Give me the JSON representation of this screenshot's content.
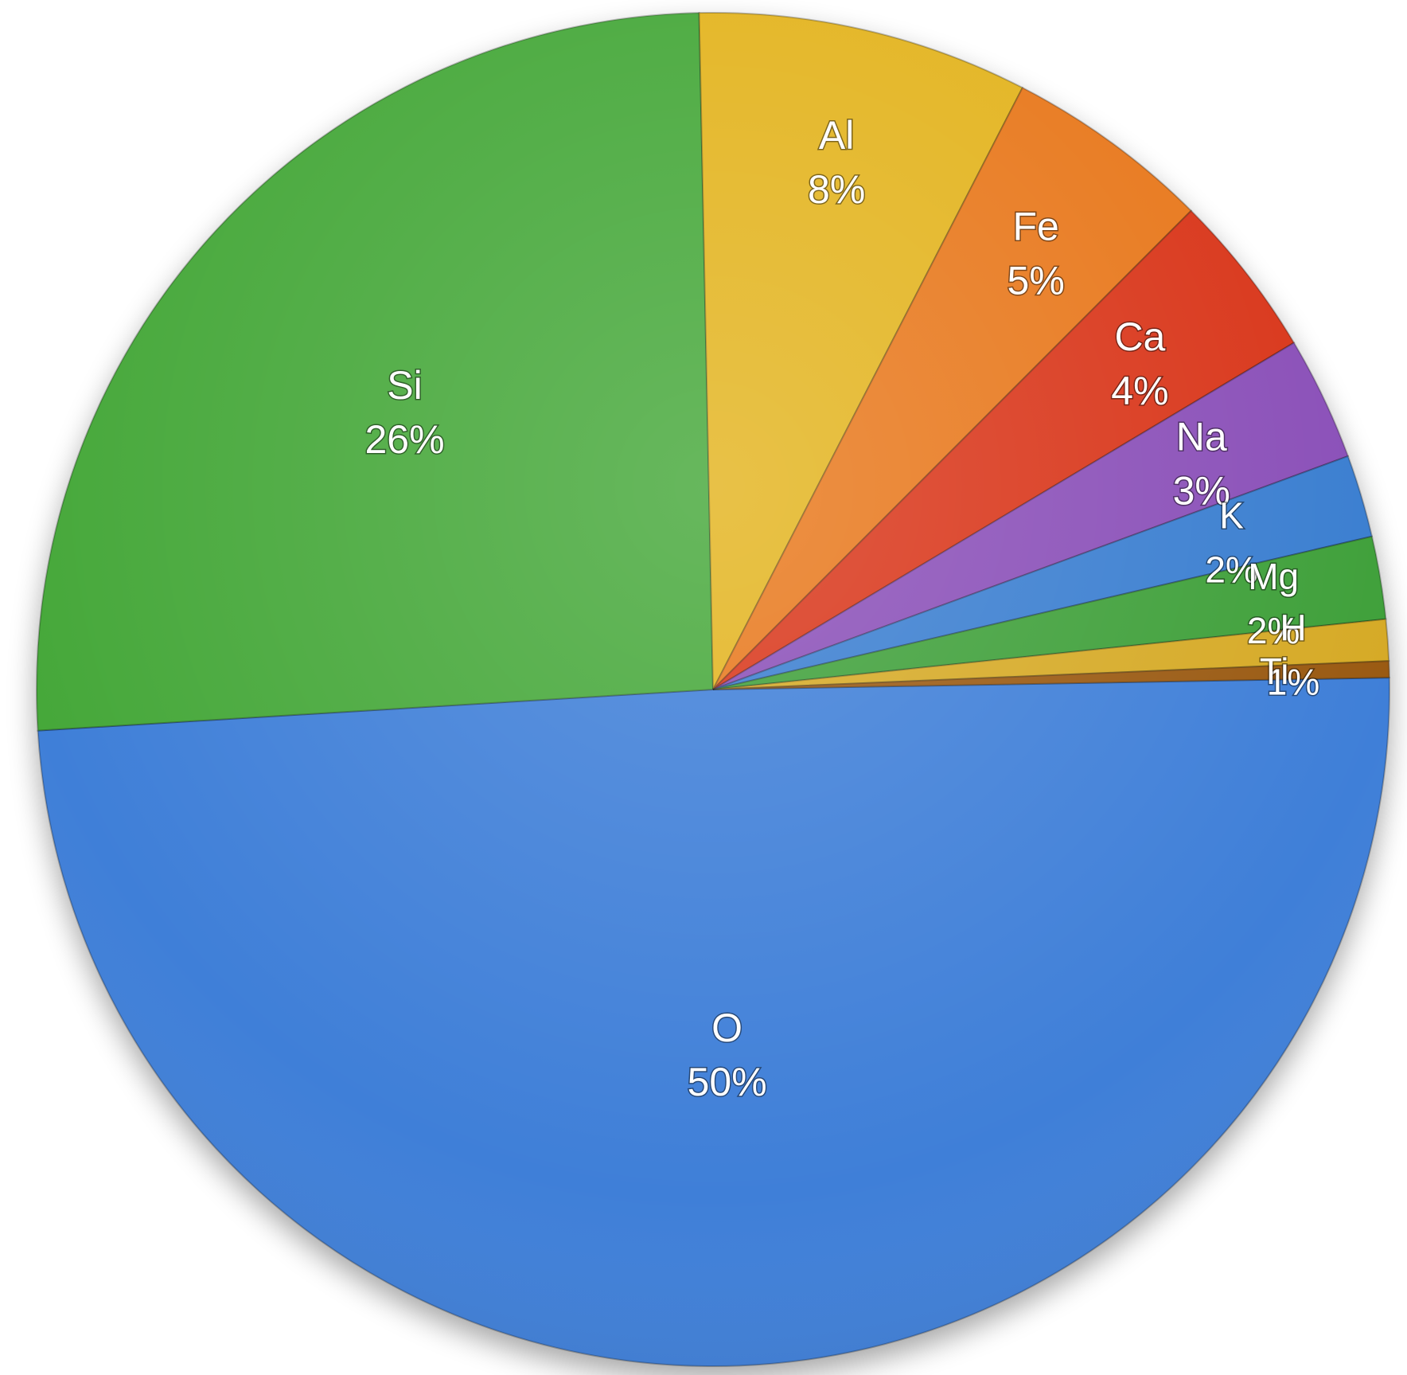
{
  "chart_data": {
    "type": "pie",
    "title": "",
    "slices": [
      {
        "label": "O",
        "value": 50,
        "value_label": "50%",
        "color": "#3f7fd8"
      },
      {
        "label": "Si",
        "value": 26,
        "value_label": "26%",
        "color": "#46a83a"
      },
      {
        "label": "Al",
        "value": 8,
        "value_label": "8%",
        "color": "#e3b41f"
      },
      {
        "label": "Fe",
        "value": 5,
        "value_label": "5%",
        "color": "#e8781c"
      },
      {
        "label": "Ca",
        "value": 4,
        "value_label": "4%",
        "color": "#d9361a"
      },
      {
        "label": "Na",
        "value": 3,
        "value_label": "3%",
        "color": "#8a4fb8"
      },
      {
        "label": "K",
        "value": 2,
        "value_label": "2%",
        "color": "#3a7ed0"
      },
      {
        "label": "Mg",
        "value": 2,
        "value_label": "2%",
        "color": "#3fa03a"
      },
      {
        "label": "H",
        "value": 1,
        "value_label": "1%",
        "color": "#d6aa26"
      },
      {
        "label": "Ti",
        "value": 0.4,
        "value_label": "",
        "color": "#9a5a12"
      }
    ],
    "legend": "none",
    "labels": "inside"
  }
}
